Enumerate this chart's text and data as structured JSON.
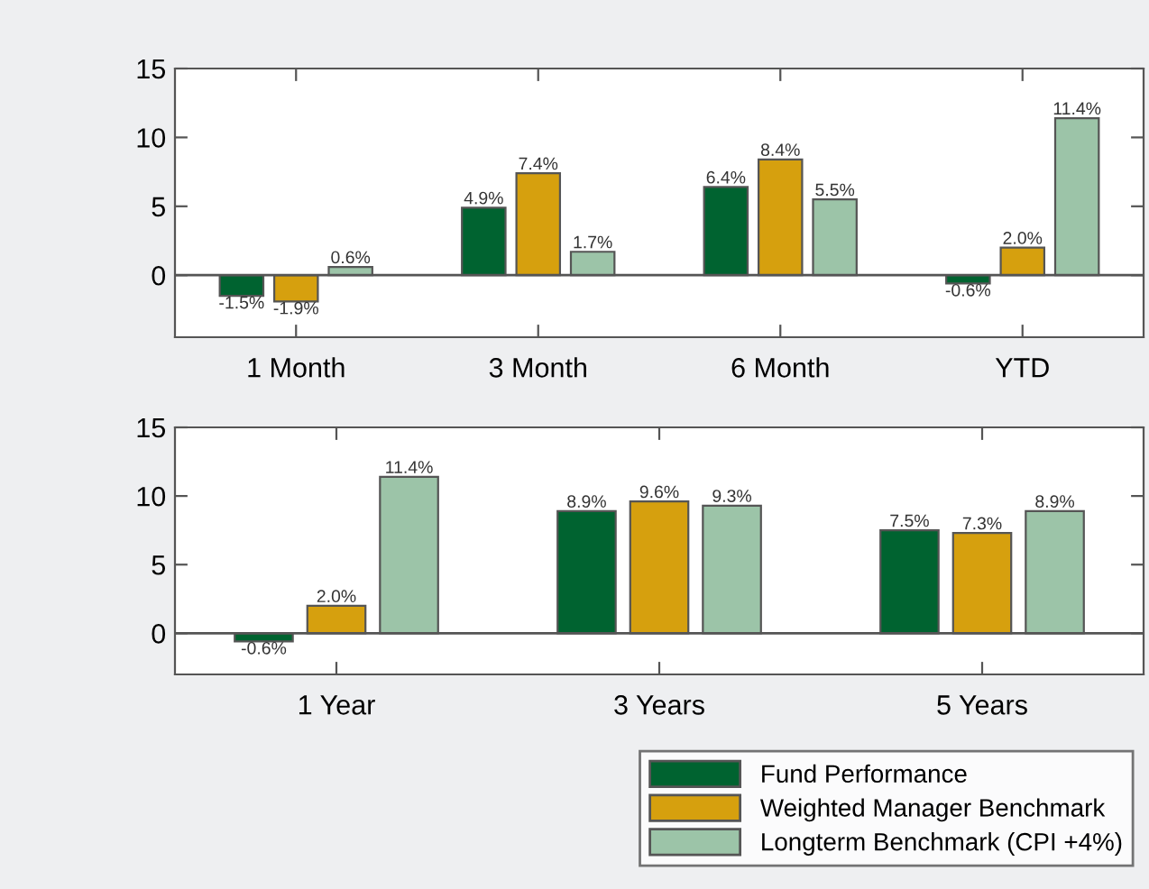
{
  "chart_data": [
    {
      "type": "bar",
      "categories": [
        "1 Month",
        "3 Month",
        "6 Month",
        "YTD"
      ],
      "ylim": [
        -4.5,
        15
      ],
      "yticks": [
        0,
        5,
        10,
        15
      ],
      "legend": false,
      "series": [
        {
          "color": "#006330",
          "values": [
            -1.5,
            4.9,
            6.4,
            -0.6
          ],
          "value_labels": [
            "-1.5%",
            "4.9%",
            "6.4%",
            "-0.6%"
          ]
        },
        {
          "color": "#d6a00e",
          "values": [
            -1.9,
            7.4,
            8.4,
            2.0
          ],
          "value_labels": [
            "-1.9%",
            "7.4%",
            "8.4%",
            "2.0%"
          ]
        },
        {
          "color": "#9cc4a8",
          "values": [
            0.6,
            1.7,
            5.5,
            11.4
          ],
          "value_labels": [
            "0.6%",
            "1.7%",
            "5.5%",
            "11.4%"
          ]
        }
      ]
    },
    {
      "type": "bar",
      "categories": [
        "1 Year",
        "3 Years",
        "5 Years"
      ],
      "ylim": [
        -3,
        15
      ],
      "yticks": [
        0,
        5,
        10,
        15
      ],
      "legend": "bottom right",
      "series": [
        {
          "name": "Fund Performance",
          "color": "#006330",
          "values": [
            -0.6,
            8.9,
            7.5
          ],
          "value_labels": [
            "-0.6%",
            "8.9%",
            "7.5%"
          ]
        },
        {
          "name": "Weighted Manager Benchmark",
          "color": "#d6a00e",
          "values": [
            2.0,
            9.6,
            7.3
          ],
          "value_labels": [
            "2.0%",
            "9.6%",
            "7.3%"
          ]
        },
        {
          "name": "Longterm Benchmark (CPI +4%)",
          "color": "#9cc4a8",
          "values": [
            11.4,
            9.3,
            8.9
          ],
          "value_labels": [
            "11.4%",
            "9.3%",
            "8.9%"
          ]
        }
      ]
    }
  ]
}
